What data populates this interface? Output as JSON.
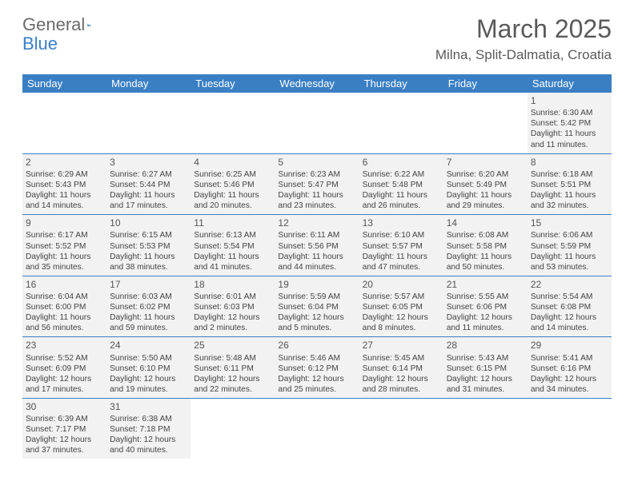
{
  "logo": {
    "part1": "General",
    "part2": "Blue"
  },
  "title": "March 2025",
  "location": "Milna, Split-Dalmatia, Croatia",
  "colors": {
    "header_bg": "#3a7fc4",
    "header_text": "#ffffff",
    "cell_bg": "#f2f2f2",
    "border": "#3a7fc4",
    "logo_gray": "#6b6b6b",
    "logo_blue": "#3a7fc4",
    "title_color": "#5a5a5a"
  },
  "day_names": [
    "Sunday",
    "Monday",
    "Tuesday",
    "Wednesday",
    "Thursday",
    "Friday",
    "Saturday"
  ],
  "weeks": [
    [
      null,
      null,
      null,
      null,
      null,
      null,
      {
        "n": "1",
        "sr": "Sunrise: 6:30 AM",
        "ss": "Sunset: 5:42 PM",
        "d1": "Daylight: 11 hours",
        "d2": "and 11 minutes."
      }
    ],
    [
      {
        "n": "2",
        "sr": "Sunrise: 6:29 AM",
        "ss": "Sunset: 5:43 PM",
        "d1": "Daylight: 11 hours",
        "d2": "and 14 minutes."
      },
      {
        "n": "3",
        "sr": "Sunrise: 6:27 AM",
        "ss": "Sunset: 5:44 PM",
        "d1": "Daylight: 11 hours",
        "d2": "and 17 minutes."
      },
      {
        "n": "4",
        "sr": "Sunrise: 6:25 AM",
        "ss": "Sunset: 5:46 PM",
        "d1": "Daylight: 11 hours",
        "d2": "and 20 minutes."
      },
      {
        "n": "5",
        "sr": "Sunrise: 6:23 AM",
        "ss": "Sunset: 5:47 PM",
        "d1": "Daylight: 11 hours",
        "d2": "and 23 minutes."
      },
      {
        "n": "6",
        "sr": "Sunrise: 6:22 AM",
        "ss": "Sunset: 5:48 PM",
        "d1": "Daylight: 11 hours",
        "d2": "and 26 minutes."
      },
      {
        "n": "7",
        "sr": "Sunrise: 6:20 AM",
        "ss": "Sunset: 5:49 PM",
        "d1": "Daylight: 11 hours",
        "d2": "and 29 minutes."
      },
      {
        "n": "8",
        "sr": "Sunrise: 6:18 AM",
        "ss": "Sunset: 5:51 PM",
        "d1": "Daylight: 11 hours",
        "d2": "and 32 minutes."
      }
    ],
    [
      {
        "n": "9",
        "sr": "Sunrise: 6:17 AM",
        "ss": "Sunset: 5:52 PM",
        "d1": "Daylight: 11 hours",
        "d2": "and 35 minutes."
      },
      {
        "n": "10",
        "sr": "Sunrise: 6:15 AM",
        "ss": "Sunset: 5:53 PM",
        "d1": "Daylight: 11 hours",
        "d2": "and 38 minutes."
      },
      {
        "n": "11",
        "sr": "Sunrise: 6:13 AM",
        "ss": "Sunset: 5:54 PM",
        "d1": "Daylight: 11 hours",
        "d2": "and 41 minutes."
      },
      {
        "n": "12",
        "sr": "Sunrise: 6:11 AM",
        "ss": "Sunset: 5:56 PM",
        "d1": "Daylight: 11 hours",
        "d2": "and 44 minutes."
      },
      {
        "n": "13",
        "sr": "Sunrise: 6:10 AM",
        "ss": "Sunset: 5:57 PM",
        "d1": "Daylight: 11 hours",
        "d2": "and 47 minutes."
      },
      {
        "n": "14",
        "sr": "Sunrise: 6:08 AM",
        "ss": "Sunset: 5:58 PM",
        "d1": "Daylight: 11 hours",
        "d2": "and 50 minutes."
      },
      {
        "n": "15",
        "sr": "Sunrise: 6:06 AM",
        "ss": "Sunset: 5:59 PM",
        "d1": "Daylight: 11 hours",
        "d2": "and 53 minutes."
      }
    ],
    [
      {
        "n": "16",
        "sr": "Sunrise: 6:04 AM",
        "ss": "Sunset: 6:00 PM",
        "d1": "Daylight: 11 hours",
        "d2": "and 56 minutes."
      },
      {
        "n": "17",
        "sr": "Sunrise: 6:03 AM",
        "ss": "Sunset: 6:02 PM",
        "d1": "Daylight: 11 hours",
        "d2": "and 59 minutes."
      },
      {
        "n": "18",
        "sr": "Sunrise: 6:01 AM",
        "ss": "Sunset: 6:03 PM",
        "d1": "Daylight: 12 hours",
        "d2": "and 2 minutes."
      },
      {
        "n": "19",
        "sr": "Sunrise: 5:59 AM",
        "ss": "Sunset: 6:04 PM",
        "d1": "Daylight: 12 hours",
        "d2": "and 5 minutes."
      },
      {
        "n": "20",
        "sr": "Sunrise: 5:57 AM",
        "ss": "Sunset: 6:05 PM",
        "d1": "Daylight: 12 hours",
        "d2": "and 8 minutes."
      },
      {
        "n": "21",
        "sr": "Sunrise: 5:55 AM",
        "ss": "Sunset: 6:06 PM",
        "d1": "Daylight: 12 hours",
        "d2": "and 11 minutes."
      },
      {
        "n": "22",
        "sr": "Sunrise: 5:54 AM",
        "ss": "Sunset: 6:08 PM",
        "d1": "Daylight: 12 hours",
        "d2": "and 14 minutes."
      }
    ],
    [
      {
        "n": "23",
        "sr": "Sunrise: 5:52 AM",
        "ss": "Sunset: 6:09 PM",
        "d1": "Daylight: 12 hours",
        "d2": "and 17 minutes."
      },
      {
        "n": "24",
        "sr": "Sunrise: 5:50 AM",
        "ss": "Sunset: 6:10 PM",
        "d1": "Daylight: 12 hours",
        "d2": "and 19 minutes."
      },
      {
        "n": "25",
        "sr": "Sunrise: 5:48 AM",
        "ss": "Sunset: 6:11 PM",
        "d1": "Daylight: 12 hours",
        "d2": "and 22 minutes."
      },
      {
        "n": "26",
        "sr": "Sunrise: 5:46 AM",
        "ss": "Sunset: 6:12 PM",
        "d1": "Daylight: 12 hours",
        "d2": "and 25 minutes."
      },
      {
        "n": "27",
        "sr": "Sunrise: 5:45 AM",
        "ss": "Sunset: 6:14 PM",
        "d1": "Daylight: 12 hours",
        "d2": "and 28 minutes."
      },
      {
        "n": "28",
        "sr": "Sunrise: 5:43 AM",
        "ss": "Sunset: 6:15 PM",
        "d1": "Daylight: 12 hours",
        "d2": "and 31 minutes."
      },
      {
        "n": "29",
        "sr": "Sunrise: 5:41 AM",
        "ss": "Sunset: 6:16 PM",
        "d1": "Daylight: 12 hours",
        "d2": "and 34 minutes."
      }
    ],
    [
      {
        "n": "30",
        "sr": "Sunrise: 6:39 AM",
        "ss": "Sunset: 7:17 PM",
        "d1": "Daylight: 12 hours",
        "d2": "and 37 minutes."
      },
      {
        "n": "31",
        "sr": "Sunrise: 6:38 AM",
        "ss": "Sunset: 7:18 PM",
        "d1": "Daylight: 12 hours",
        "d2": "and 40 minutes."
      },
      null,
      null,
      null,
      null,
      null
    ]
  ]
}
